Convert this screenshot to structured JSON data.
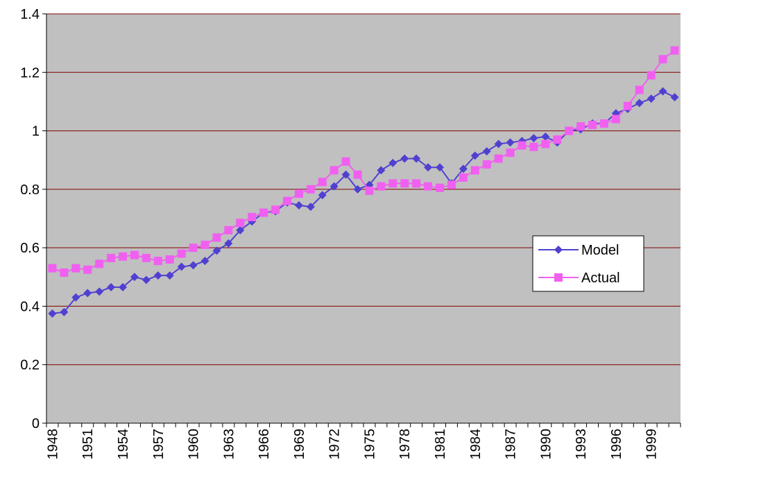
{
  "chart_data": {
    "type": "line",
    "categories": [
      "1948",
      null,
      null,
      "1951",
      null,
      null,
      "1954",
      null,
      null,
      "1957",
      null,
      null,
      "1960",
      null,
      null,
      "1963",
      null,
      null,
      "1966",
      null,
      null,
      "1969",
      null,
      null,
      "1972",
      null,
      null,
      "1975",
      null,
      null,
      "1978",
      null,
      null,
      "1981",
      null,
      null,
      "1984",
      null,
      null,
      "1987",
      null,
      null,
      "1990",
      null,
      null,
      "1993",
      null,
      null,
      "1996",
      null,
      null,
      "1999",
      null,
      null
    ],
    "series": [
      {
        "name": "Model",
        "color": "#5040d0",
        "marker": "diamond",
        "values": [
          0.375,
          0.38,
          0.43,
          0.445,
          0.45,
          0.465,
          0.465,
          0.5,
          0.49,
          0.505,
          0.505,
          0.535,
          0.54,
          0.555,
          0.59,
          0.615,
          0.66,
          0.69,
          0.72,
          0.725,
          0.755,
          0.745,
          0.74,
          0.78,
          0.81,
          0.85,
          0.8,
          0.815,
          0.865,
          0.89,
          0.905,
          0.905,
          0.875,
          0.875,
          0.82,
          0.87,
          0.915,
          0.93,
          0.955,
          0.96,
          0.965,
          0.975,
          0.98,
          0.96,
          1.0,
          1.005,
          1.025,
          1.025,
          1.06,
          1.075,
          1.095,
          1.11,
          1.135,
          1.115
        ]
      },
      {
        "name": "Actual",
        "color": "#f060f0",
        "marker": "square",
        "values": [
          0.53,
          0.515,
          0.53,
          0.525,
          0.545,
          0.565,
          0.57,
          0.575,
          0.565,
          0.555,
          0.56,
          0.58,
          0.6,
          0.61,
          0.635,
          0.66,
          0.685,
          0.705,
          0.72,
          0.73,
          0.76,
          0.785,
          0.8,
          0.825,
          0.865,
          0.895,
          0.85,
          0.795,
          0.81,
          0.82,
          0.82,
          0.82,
          0.81,
          0.805,
          0.815,
          0.84,
          0.865,
          0.885,
          0.905,
          0.925,
          0.95,
          0.945,
          0.955,
          0.97,
          1.0,
          1.015,
          1.02,
          1.025,
          1.04,
          1.085,
          1.14,
          1.19,
          1.245,
          1.275
        ]
      }
    ],
    "ylim": [
      0,
      1.4
    ],
    "yticks": [
      0,
      0.2,
      0.4,
      0.6,
      0.8,
      1,
      1.2,
      1.4
    ],
    "grid": true,
    "legend_position": "right"
  }
}
